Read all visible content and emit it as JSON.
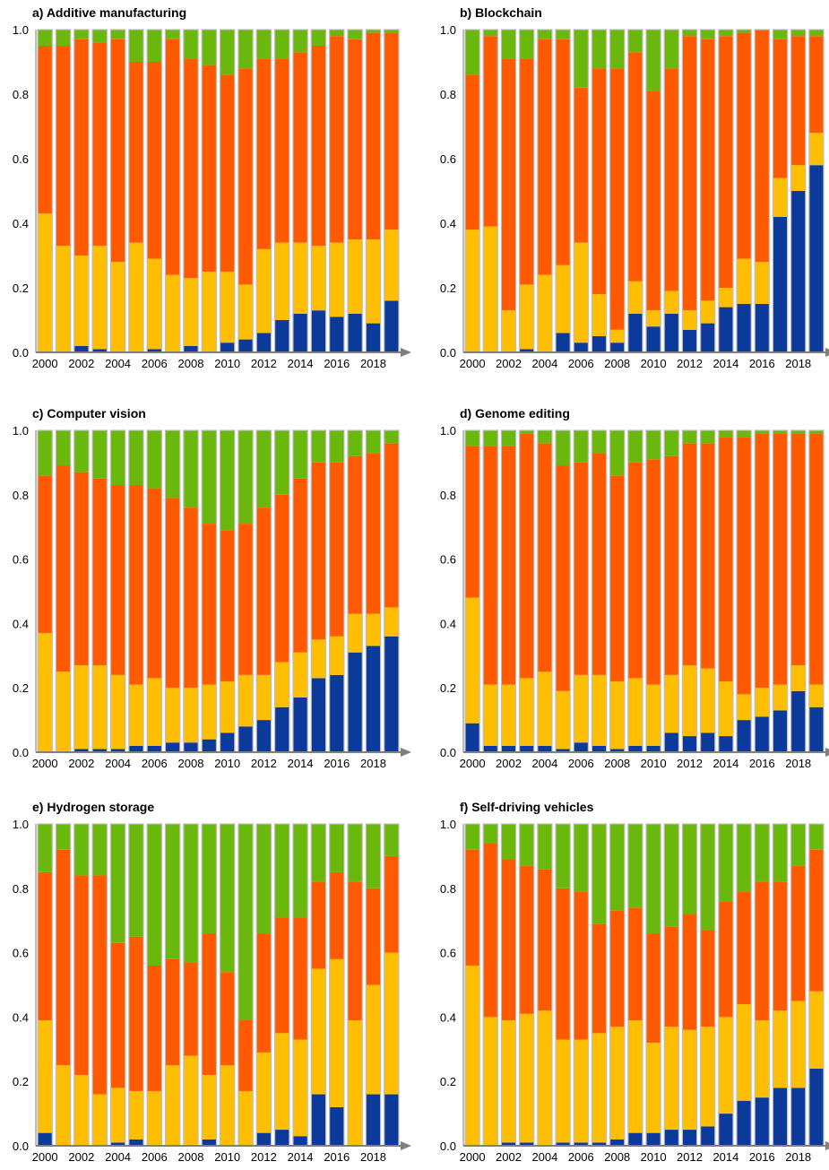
{
  "colors": {
    "series_1": "#0b3a9a",
    "series_2": "#ffbf00",
    "series_3": "#ff5a00",
    "series_4": "#6bb80c",
    "bar_border": "#bdbdbd",
    "axis": "#7f7f7f",
    "text": "#000000"
  },
  "chart_data": [
    {
      "type": "bar",
      "stacked": true,
      "title": "a) Additive manufacturing",
      "ylim": [
        0,
        1
      ],
      "yticks": [
        "0.0",
        "0.2",
        "0.4",
        "0.6",
        "0.8",
        "1.0"
      ],
      "x_tick_labels": [
        "2000",
        "2002",
        "2004",
        "2006",
        "2008",
        "2010",
        "2012",
        "2014",
        "2016",
        "2018"
      ],
      "categories": [
        "2000",
        "2001",
        "2002",
        "2003",
        "2004",
        "2005",
        "2006",
        "2007",
        "2008",
        "2009",
        "2010",
        "2011",
        "2012",
        "2013",
        "2014",
        "2015",
        "2016",
        "2017",
        "2018",
        "2019"
      ],
      "series": [
        {
          "values": [
            0.0,
            0.0,
            0.02,
            0.01,
            0.0,
            0.0,
            0.01,
            0.0,
            0.02,
            0.0,
            0.03,
            0.04,
            0.06,
            0.1,
            0.12,
            0.13,
            0.11,
            0.12,
            0.09,
            0.16
          ]
        },
        {
          "values": [
            0.43,
            0.33,
            0.28,
            0.32,
            0.28,
            0.34,
            0.28,
            0.24,
            0.21,
            0.25,
            0.22,
            0.17,
            0.26,
            0.24,
            0.22,
            0.2,
            0.23,
            0.23,
            0.26,
            0.22
          ]
        },
        {
          "values": [
            0.52,
            0.62,
            0.67,
            0.63,
            0.69,
            0.56,
            0.61,
            0.73,
            0.68,
            0.64,
            0.61,
            0.67,
            0.59,
            0.57,
            0.59,
            0.62,
            0.64,
            0.62,
            0.64,
            0.61
          ]
        },
        {
          "values": [
            0.05,
            0.05,
            0.03,
            0.04,
            0.03,
            0.1,
            0.1,
            0.03,
            0.09,
            0.11,
            0.14,
            0.12,
            0.09,
            0.09,
            0.07,
            0.05,
            0.02,
            0.03,
            0.01,
            0.01
          ]
        }
      ]
    },
    {
      "type": "bar",
      "stacked": true,
      "title": "b) Blockchain",
      "ylim": [
        0,
        1
      ],
      "yticks": [
        "0.0",
        "0.2",
        "0.4",
        "0.6",
        "0.8",
        "1.0"
      ],
      "x_tick_labels": [
        "2000",
        "2002",
        "2004",
        "2006",
        "2008",
        "2010",
        "2012",
        "2014",
        "2016",
        "2018"
      ],
      "categories": [
        "2000",
        "2001",
        "2002",
        "2003",
        "2004",
        "2005",
        "2006",
        "2007",
        "2008",
        "2009",
        "2010",
        "2011",
        "2012",
        "2013",
        "2014",
        "2015",
        "2016",
        "2017",
        "2018",
        "2019"
      ],
      "series": [
        {
          "values": [
            0.0,
            0.0,
            0.0,
            0.01,
            0.0,
            0.06,
            0.03,
            0.05,
            0.03,
            0.12,
            0.08,
            0.12,
            0.07,
            0.09,
            0.14,
            0.15,
            0.15,
            0.42,
            0.5,
            0.58
          ]
        },
        {
          "values": [
            0.38,
            0.39,
            0.13,
            0.2,
            0.24,
            0.21,
            0.31,
            0.13,
            0.04,
            0.1,
            0.05,
            0.07,
            0.06,
            0.07,
            0.06,
            0.14,
            0.13,
            0.12,
            0.08,
            0.1
          ]
        },
        {
          "values": [
            0.48,
            0.59,
            0.78,
            0.7,
            0.73,
            0.7,
            0.48,
            0.7,
            0.81,
            0.71,
            0.68,
            0.69,
            0.85,
            0.81,
            0.78,
            0.7,
            0.72,
            0.43,
            0.4,
            0.3
          ]
        },
        {
          "values": [
            0.14,
            0.02,
            0.09,
            0.09,
            0.03,
            0.03,
            0.18,
            0.12,
            0.12,
            0.07,
            0.19,
            0.12,
            0.02,
            0.03,
            0.02,
            0.01,
            0.0,
            0.03,
            0.02,
            0.02
          ]
        }
      ]
    },
    {
      "type": "bar",
      "stacked": true,
      "title": "c) Computer vision",
      "ylim": [
        0,
        1
      ],
      "yticks": [
        "0.0",
        "0.2",
        "0.4",
        "0.6",
        "0.8",
        "1.0"
      ],
      "x_tick_labels": [
        "2000",
        "2002",
        "2004",
        "2006",
        "2008",
        "2010",
        "2012",
        "2014",
        "2016",
        "2018"
      ],
      "categories": [
        "2000",
        "2001",
        "2002",
        "2003",
        "2004",
        "2005",
        "2006",
        "2007",
        "2008",
        "2009",
        "2010",
        "2011",
        "2012",
        "2013",
        "2014",
        "2015",
        "2016",
        "2017",
        "2018",
        "2019"
      ],
      "series": [
        {
          "values": [
            0.0,
            0.0,
            0.01,
            0.01,
            0.01,
            0.02,
            0.02,
            0.03,
            0.03,
            0.04,
            0.06,
            0.08,
            0.1,
            0.14,
            0.17,
            0.23,
            0.24,
            0.31,
            0.33,
            0.36
          ]
        },
        {
          "values": [
            0.37,
            0.25,
            0.26,
            0.26,
            0.23,
            0.19,
            0.21,
            0.17,
            0.17,
            0.17,
            0.16,
            0.16,
            0.14,
            0.14,
            0.14,
            0.12,
            0.12,
            0.12,
            0.1,
            0.09
          ]
        },
        {
          "values": [
            0.49,
            0.64,
            0.6,
            0.58,
            0.59,
            0.62,
            0.59,
            0.59,
            0.56,
            0.5,
            0.47,
            0.47,
            0.52,
            0.52,
            0.54,
            0.55,
            0.54,
            0.49,
            0.5,
            0.51
          ]
        },
        {
          "values": [
            0.14,
            0.11,
            0.13,
            0.15,
            0.17,
            0.17,
            0.18,
            0.21,
            0.24,
            0.29,
            0.31,
            0.29,
            0.24,
            0.2,
            0.15,
            0.1,
            0.1,
            0.08,
            0.07,
            0.04
          ]
        }
      ]
    },
    {
      "type": "bar",
      "stacked": true,
      "title": "d) Genome editing",
      "ylim": [
        0,
        1
      ],
      "yticks": [
        "0.0",
        "0.2",
        "0.4",
        "0.6",
        "0.8",
        "1.0"
      ],
      "x_tick_labels": [
        "2000",
        "2002",
        "2004",
        "2006",
        "2008",
        "2010",
        "2012",
        "2014",
        "2016",
        "2018"
      ],
      "categories": [
        "2000",
        "2001",
        "2002",
        "2003",
        "2004",
        "2005",
        "2006",
        "2007",
        "2008",
        "2009",
        "2010",
        "2011",
        "2012",
        "2013",
        "2014",
        "2015",
        "2016",
        "2017",
        "2018",
        "2019"
      ],
      "series": [
        {
          "values": [
            0.09,
            0.02,
            0.02,
            0.02,
            0.02,
            0.01,
            0.03,
            0.02,
            0.01,
            0.02,
            0.02,
            0.06,
            0.05,
            0.06,
            0.05,
            0.1,
            0.11,
            0.13,
            0.19,
            0.14
          ]
        },
        {
          "values": [
            0.39,
            0.19,
            0.19,
            0.21,
            0.23,
            0.18,
            0.21,
            0.22,
            0.21,
            0.21,
            0.19,
            0.18,
            0.22,
            0.2,
            0.17,
            0.08,
            0.09,
            0.08,
            0.08,
            0.07
          ]
        },
        {
          "values": [
            0.47,
            0.74,
            0.74,
            0.76,
            0.71,
            0.7,
            0.66,
            0.69,
            0.64,
            0.67,
            0.7,
            0.68,
            0.69,
            0.7,
            0.76,
            0.8,
            0.79,
            0.78,
            0.72,
            0.78
          ]
        },
        {
          "values": [
            0.05,
            0.05,
            0.05,
            0.01,
            0.04,
            0.11,
            0.1,
            0.07,
            0.14,
            0.1,
            0.09,
            0.08,
            0.04,
            0.04,
            0.02,
            0.02,
            0.01,
            0.01,
            0.01,
            0.01
          ]
        }
      ]
    },
    {
      "type": "bar",
      "stacked": true,
      "title": "e) Hydrogen storage",
      "ylim": [
        0,
        1
      ],
      "yticks": [
        "0.0",
        "0.2",
        "0.4",
        "0.6",
        "0.8",
        "1.0"
      ],
      "x_tick_labels": [
        "2000",
        "2002",
        "2004",
        "2006",
        "2008",
        "2010",
        "2012",
        "2014",
        "2016",
        "2018"
      ],
      "categories": [
        "2000",
        "2001",
        "2002",
        "2003",
        "2004",
        "2005",
        "2006",
        "2007",
        "2008",
        "2009",
        "2010",
        "2011",
        "2012",
        "2013",
        "2014",
        "2015",
        "2016",
        "2017",
        "2018",
        "2019"
      ],
      "series": [
        {
          "values": [
            0.04,
            0.0,
            0.0,
            0.0,
            0.01,
            0.02,
            0.0,
            0.0,
            0.0,
            0.02,
            0.0,
            0.0,
            0.04,
            0.05,
            0.03,
            0.16,
            0.12,
            0.0,
            0.16,
            0.16
          ]
        },
        {
          "values": [
            0.35,
            0.25,
            0.22,
            0.16,
            0.17,
            0.15,
            0.17,
            0.25,
            0.28,
            0.2,
            0.25,
            0.17,
            0.25,
            0.3,
            0.3,
            0.39,
            0.46,
            0.39,
            0.34,
            0.44
          ]
        },
        {
          "values": [
            0.46,
            0.67,
            0.62,
            0.68,
            0.45,
            0.48,
            0.39,
            0.33,
            0.29,
            0.44,
            0.29,
            0.22,
            0.37,
            0.36,
            0.38,
            0.27,
            0.27,
            0.43,
            0.3,
            0.3
          ]
        },
        {
          "values": [
            0.15,
            0.08,
            0.16,
            0.16,
            0.37,
            0.35,
            0.44,
            0.42,
            0.43,
            0.34,
            0.46,
            0.61,
            0.34,
            0.29,
            0.29,
            0.18,
            0.15,
            0.18,
            0.2,
            0.1
          ]
        }
      ]
    },
    {
      "type": "bar",
      "stacked": true,
      "title": "f) Self-driving vehicles",
      "ylim": [
        0,
        1
      ],
      "yticks": [
        "0.0",
        "0.2",
        "0.4",
        "0.6",
        "0.8",
        "1.0"
      ],
      "x_tick_labels": [
        "2000",
        "2002",
        "2004",
        "2006",
        "2008",
        "2010",
        "2012",
        "2014",
        "2016",
        "2018"
      ],
      "categories": [
        "2000",
        "2001",
        "2002",
        "2003",
        "2004",
        "2005",
        "2006",
        "2007",
        "2008",
        "2009",
        "2010",
        "2011",
        "2012",
        "2013",
        "2014",
        "2015",
        "2016",
        "2017",
        "2018",
        "2019"
      ],
      "series": [
        {
          "values": [
            0.0,
            0.0,
            0.01,
            0.01,
            0.0,
            0.01,
            0.01,
            0.01,
            0.02,
            0.04,
            0.04,
            0.05,
            0.05,
            0.06,
            0.1,
            0.14,
            0.15,
            0.18,
            0.18,
            0.24
          ]
        },
        {
          "values": [
            0.56,
            0.4,
            0.38,
            0.4,
            0.42,
            0.32,
            0.32,
            0.34,
            0.35,
            0.35,
            0.28,
            0.32,
            0.31,
            0.31,
            0.3,
            0.3,
            0.24,
            0.24,
            0.27,
            0.24
          ]
        },
        {
          "values": [
            0.36,
            0.54,
            0.5,
            0.46,
            0.44,
            0.47,
            0.46,
            0.34,
            0.36,
            0.35,
            0.34,
            0.31,
            0.36,
            0.3,
            0.36,
            0.35,
            0.43,
            0.4,
            0.42,
            0.44
          ]
        },
        {
          "values": [
            0.08,
            0.06,
            0.11,
            0.13,
            0.14,
            0.2,
            0.21,
            0.31,
            0.27,
            0.26,
            0.34,
            0.32,
            0.28,
            0.33,
            0.24,
            0.21,
            0.18,
            0.18,
            0.13,
            0.08
          ]
        }
      ]
    }
  ]
}
